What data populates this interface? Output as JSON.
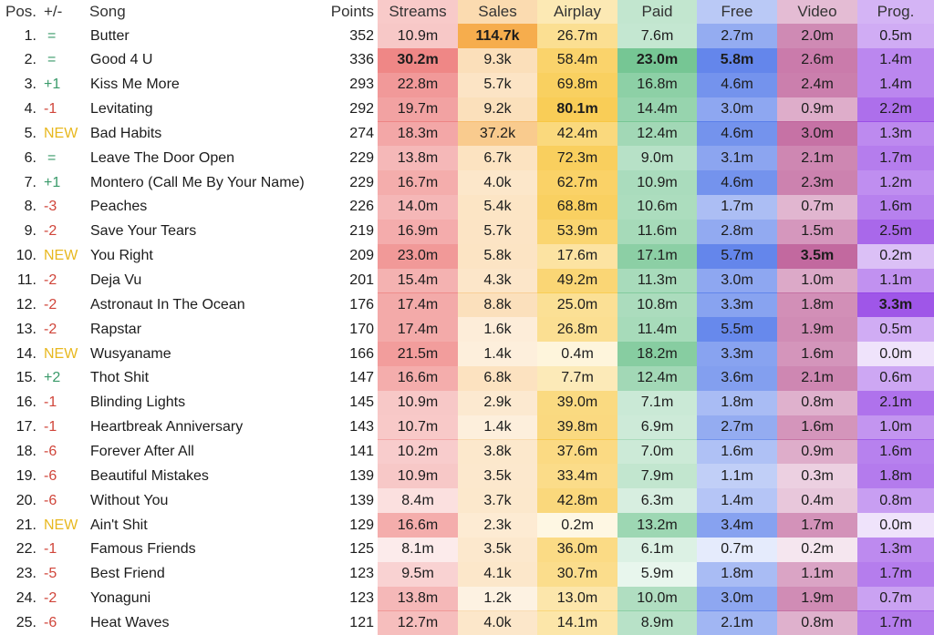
{
  "chart_data": {
    "type": "table",
    "columns": [
      "Pos.",
      "+/-",
      "Song",
      "Points",
      "Streams",
      "Sales",
      "Airplay",
      "Paid",
      "Free",
      "Video",
      "Prog."
    ],
    "highlighted_max": {
      "Sales": 0,
      "Streams": 1,
      "Paid": 1,
      "Free": 1,
      "Airplay": 3,
      "Video": 9,
      "Prog.": 11
    },
    "colors": {
      "Streams": "#ec7372",
      "Sales": "#f4a030",
      "Airplay": "#f8c53b",
      "Paid": "#5fbd82",
      "Free": "#4a72e8",
      "Video": "#b8508f",
      "Prog.": "#8f3ae4",
      "change_up": "#3a9a6a",
      "change_down": "#d0453a",
      "change_new": "#e8b81f"
    },
    "rows": [
      {
        "pos": "1.",
        "change": "=",
        "song": "Butter",
        "points": "352",
        "streams": "10.9m",
        "sales": "114.7k",
        "airplay": "26.7m",
        "paid": "7.6m",
        "free": "2.7m",
        "video": "2.0m",
        "prog": "0.5m"
      },
      {
        "pos": "2.",
        "change": "=",
        "song": "Good 4 U",
        "points": "336",
        "streams": "30.2m",
        "sales": "9.3k",
        "airplay": "58.4m",
        "paid": "23.0m",
        "free": "5.8m",
        "video": "2.6m",
        "prog": "1.4m"
      },
      {
        "pos": "3.",
        "change": "+1",
        "song": "Kiss Me More",
        "points": "293",
        "streams": "22.8m",
        "sales": "5.7k",
        "airplay": "69.8m",
        "paid": "16.8m",
        "free": "4.6m",
        "video": "2.4m",
        "prog": "1.4m"
      },
      {
        "pos": "4.",
        "change": "-1",
        "song": "Levitating",
        "points": "292",
        "streams": "19.7m",
        "sales": "9.2k",
        "airplay": "80.1m",
        "paid": "14.4m",
        "free": "3.0m",
        "video": "0.9m",
        "prog": "2.2m"
      },
      {
        "pos": "5.",
        "change": "NEW",
        "song": "Bad Habits",
        "points": "274",
        "streams": "18.3m",
        "sales": "37.2k",
        "airplay": "42.4m",
        "paid": "12.4m",
        "free": "4.6m",
        "video": "3.0m",
        "prog": "1.3m"
      },
      {
        "pos": "6.",
        "change": "=",
        "song": "Leave The Door Open",
        "points": "229",
        "streams": "13.8m",
        "sales": "6.7k",
        "airplay": "72.3m",
        "paid": "9.0m",
        "free": "3.1m",
        "video": "2.1m",
        "prog": "1.7m"
      },
      {
        "pos": "7.",
        "change": "+1",
        "song": "Montero (Call Me By Your Name)",
        "points": "229",
        "streams": "16.7m",
        "sales": "4.0k",
        "airplay": "62.7m",
        "paid": "10.9m",
        "free": "4.6m",
        "video": "2.3m",
        "prog": "1.2m"
      },
      {
        "pos": "8.",
        "change": "-3",
        "song": "Peaches",
        "points": "226",
        "streams": "14.0m",
        "sales": "5.4k",
        "airplay": "68.8m",
        "paid": "10.6m",
        "free": "1.7m",
        "video": "0.7m",
        "prog": "1.6m"
      },
      {
        "pos": "9.",
        "change": "-2",
        "song": "Save Your Tears",
        "points": "219",
        "streams": "16.9m",
        "sales": "5.7k",
        "airplay": "53.9m",
        "paid": "11.6m",
        "free": "2.8m",
        "video": "1.5m",
        "prog": "2.5m"
      },
      {
        "pos": "10.",
        "change": "NEW",
        "song": "You Right",
        "points": "209",
        "streams": "23.0m",
        "sales": "5.8k",
        "airplay": "17.6m",
        "paid": "17.1m",
        "free": "5.7m",
        "video": "3.5m",
        "prog": "0.2m"
      },
      {
        "pos": "11.",
        "change": "-2",
        "song": "Deja Vu",
        "points": "201",
        "streams": "15.4m",
        "sales": "4.3k",
        "airplay": "49.2m",
        "paid": "11.3m",
        "free": "3.0m",
        "video": "1.0m",
        "prog": "1.1m"
      },
      {
        "pos": "12.",
        "change": "-2",
        "song": "Astronaut In The Ocean",
        "points": "176",
        "streams": "17.4m",
        "sales": "8.8k",
        "airplay": "25.0m",
        "paid": "10.8m",
        "free": "3.3m",
        "video": "1.8m",
        "prog": "3.3m"
      },
      {
        "pos": "13.",
        "change": "-2",
        "song": "Rapstar",
        "points": "170",
        "streams": "17.4m",
        "sales": "1.6k",
        "airplay": "26.8m",
        "paid": "11.4m",
        "free": "5.5m",
        "video": "1.9m",
        "prog": "0.5m"
      },
      {
        "pos": "14.",
        "change": "NEW",
        "song": "Wusyaname",
        "points": "166",
        "streams": "21.5m",
        "sales": "1.4k",
        "airplay": "0.4m",
        "paid": "18.2m",
        "free": "3.3m",
        "video": "1.6m",
        "prog": "0.0m"
      },
      {
        "pos": "15.",
        "change": "+2",
        "song": "Thot Shit",
        "points": "147",
        "streams": "16.6m",
        "sales": "6.8k",
        "airplay": "7.7m",
        "paid": "12.4m",
        "free": "3.6m",
        "video": "2.1m",
        "prog": "0.6m"
      },
      {
        "pos": "16.",
        "change": "-1",
        "song": "Blinding Lights",
        "points": "145",
        "streams": "10.9m",
        "sales": "2.9k",
        "airplay": "39.0m",
        "paid": "7.1m",
        "free": "1.8m",
        "video": "0.8m",
        "prog": "2.1m"
      },
      {
        "pos": "17.",
        "change": "-1",
        "song": "Heartbreak Anniversary",
        "points": "143",
        "streams": "10.7m",
        "sales": "1.4k",
        "airplay": "39.8m",
        "paid": "6.9m",
        "free": "2.7m",
        "video": "1.6m",
        "prog": "1.0m"
      },
      {
        "pos": "18.",
        "change": "-6",
        "song": "Forever After All",
        "points": "141",
        "streams": "10.2m",
        "sales": "3.8k",
        "airplay": "37.6m",
        "paid": "7.0m",
        "free": "1.6m",
        "video": "0.9m",
        "prog": "1.6m"
      },
      {
        "pos": "19.",
        "change": "-6",
        "song": "Beautiful Mistakes",
        "points": "139",
        "streams": "10.9m",
        "sales": "3.5k",
        "airplay": "33.4m",
        "paid": "7.9m",
        "free": "1.1m",
        "video": "0.3m",
        "prog": "1.8m"
      },
      {
        "pos": "20.",
        "change": "-6",
        "song": "Without You",
        "points": "139",
        "streams": "8.4m",
        "sales": "3.7k",
        "airplay": "42.8m",
        "paid": "6.3m",
        "free": "1.4m",
        "video": "0.4m",
        "prog": "0.8m"
      },
      {
        "pos": "21.",
        "change": "NEW",
        "song": "Ain't Shit",
        "points": "129",
        "streams": "16.6m",
        "sales": "2.3k",
        "airplay": "0.2m",
        "paid": "13.2m",
        "free": "3.4m",
        "video": "1.7m",
        "prog": "0.0m"
      },
      {
        "pos": "22.",
        "change": "-1",
        "song": "Famous Friends",
        "points": "125",
        "streams": "8.1m",
        "sales": "3.5k",
        "airplay": "36.0m",
        "paid": "6.1m",
        "free": "0.7m",
        "video": "0.2m",
        "prog": "1.3m"
      },
      {
        "pos": "23.",
        "change": "-5",
        "song": "Best Friend",
        "points": "123",
        "streams": "9.5m",
        "sales": "4.1k",
        "airplay": "30.7m",
        "paid": "5.9m",
        "free": "1.8m",
        "video": "1.1m",
        "prog": "1.7m"
      },
      {
        "pos": "24.",
        "change": "-2",
        "song": "Yonaguni",
        "points": "123",
        "streams": "13.8m",
        "sales": "1.2k",
        "airplay": "13.0m",
        "paid": "10.0m",
        "free": "3.0m",
        "video": "1.9m",
        "prog": "0.7m"
      },
      {
        "pos": "25.",
        "change": "-6",
        "song": "Heat Waves",
        "points": "121",
        "streams": "12.7m",
        "sales": "4.0k",
        "airplay": "14.1m",
        "paid": "8.9m",
        "free": "2.1m",
        "video": "0.8m",
        "prog": "1.7m"
      }
    ]
  }
}
